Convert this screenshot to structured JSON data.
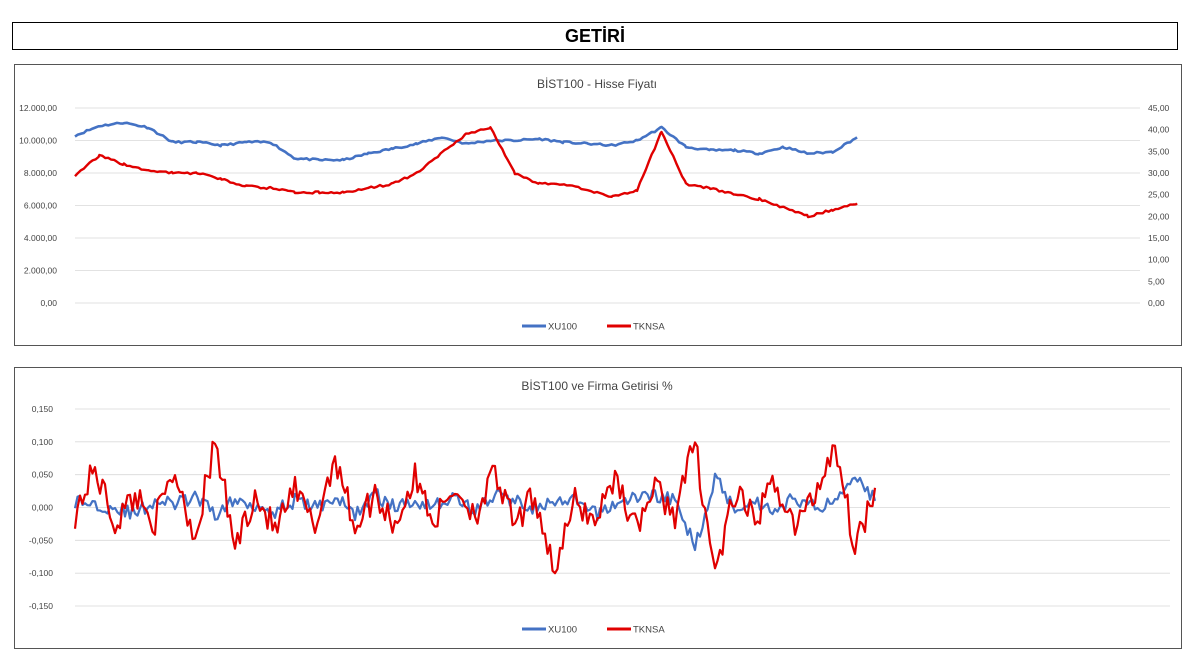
{
  "header": {
    "title": "GETİRİ"
  },
  "colors": {
    "xu100": "#4472c4",
    "tknsa": "#e00000",
    "grid": "#d9d9d9"
  },
  "chart_data": [
    {
      "type": "line",
      "title": "BİST100 - Hisse Fiyatı",
      "y_left_ticks": [
        "0,00",
        "2.000,00",
        "4.000,00",
        "6.000,00",
        "8.000,00",
        "10.000,00",
        "12.000,00"
      ],
      "y_right_ticks": [
        "0,00",
        "5,00",
        "10,00",
        "15,00",
        "20,00",
        "25,00",
        "30,00",
        "35,00",
        "40,00",
        "45,00"
      ],
      "ylim_left": [
        0,
        12000
      ],
      "ylim_right": [
        0,
        45
      ],
      "grid": true,
      "legend": "bottom-center",
      "x": [
        0,
        25,
        50,
        75,
        100,
        125,
        150,
        175,
        200,
        225,
        250,
        275,
        300,
        325,
        350,
        375,
        400,
        425,
        450,
        475,
        500,
        525,
        550,
        575,
        600,
        625,
        650,
        675,
        700,
        725,
        750,
        775,
        800
      ],
      "series": [
        {
          "name": "XU100",
          "axis": "left",
          "values": [
            10300,
            10900,
            11100,
            10800,
            9900,
            9900,
            9700,
            9900,
            9900,
            8900,
            8800,
            8800,
            9200,
            9500,
            9800,
            10200,
            9800,
            10000,
            10000,
            10100,
            9900,
            9800,
            9700,
            10000,
            10800,
            9600,
            9400,
            9400,
            9200,
            9600,
            9200,
            9300,
            10200
          ]
        },
        {
          "name": "TKNSA",
          "axis": "right",
          "values": [
            29.5,
            34.0,
            32.0,
            30.5,
            30.0,
            30.0,
            28.5,
            27.0,
            26.5,
            25.5,
            25.5,
            25.5,
            26.5,
            27.5,
            30.0,
            34.5,
            39.0,
            40.5,
            30.0,
            27.5,
            27.5,
            26.0,
            24.5,
            26.0,
            39.5,
            27.5,
            26.5,
            25.0,
            24.0,
            22.0,
            20.0,
            21.5,
            23.0
          ]
        }
      ]
    },
    {
      "type": "line",
      "title": "BİST100 ve Firma Getirisi %",
      "y_ticks": [
        "-0,150",
        "-0,100",
        "-0,050",
        "0,000",
        "0,050",
        "0,100",
        "0,150"
      ],
      "ylim": [
        -0.15,
        0.15
      ],
      "grid": true,
      "legend": "bottom-center",
      "x": [
        0,
        20,
        40,
        60,
        80,
        100,
        120,
        140,
        160,
        180,
        200,
        220,
        240,
        260,
        280,
        300,
        320,
        340,
        360,
        380,
        400,
        420,
        440,
        460,
        480,
        500,
        520,
        540,
        560,
        580,
        600,
        620,
        640,
        660,
        680,
        700,
        720,
        740,
        760,
        780,
        800
      ],
      "series": [
        {
          "name": "XU100",
          "values": [
            0.01,
            0.005,
            0.0,
            -0.01,
            0.01,
            0.005,
            0.015,
            -0.01,
            0.01,
            0.005,
            -0.005,
            0.01,
            0.0,
            0.015,
            -0.01,
            0.02,
            0.0,
            0.01,
            0.005,
            0.015,
            -0.005,
            0.02,
            0.01,
            0.0,
            0.005,
            0.01,
            -0.01,
            0.005,
            0.015,
            0.02,
            0.01,
            -0.06,
            0.045,
            0.0,
            0.01,
            -0.005,
            0.015,
            0.0,
            0.01,
            0.055,
            0.01
          ]
        },
        {
          "name": "TKNSA",
          "values": [
            -0.01,
            0.06,
            -0.025,
            0.02,
            -0.02,
            0.055,
            -0.045,
            0.1,
            -0.06,
            0.02,
            -0.035,
            0.025,
            -0.03,
            0.08,
            -0.03,
            0.02,
            -0.025,
            0.045,
            -0.02,
            0.03,
            -0.01,
            0.05,
            -0.03,
            0.02,
            -0.1,
            0.01,
            -0.02,
            0.05,
            -0.03,
            0.03,
            -0.01,
            0.1,
            -0.1,
            0.02,
            -0.02,
            0.04,
            -0.03,
            0.02,
            0.1,
            -0.06,
            0.03
          ]
        }
      ]
    }
  ]
}
